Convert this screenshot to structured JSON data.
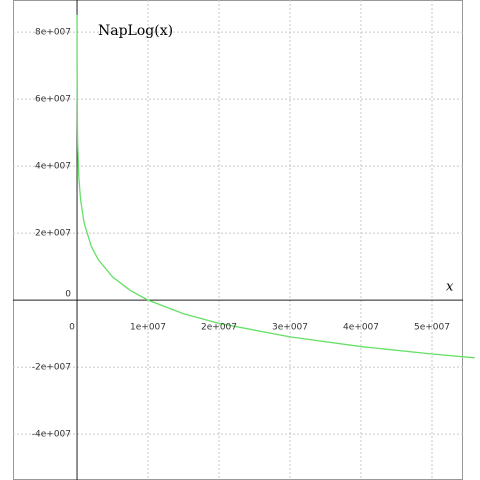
{
  "chart_data": {
    "type": "line",
    "title": "NapLog(x)",
    "x_label": "x",
    "color": "#66e066",
    "x": [
      2000,
      10000,
      50000,
      100000,
      250000,
      500000,
      1000000,
      2000000,
      3000000,
      5000000,
      7500000,
      10000000,
      15000000,
      20000000,
      30000000,
      40000000,
      50000000,
      56000000
    ],
    "values": [
      85171932,
      69077553,
      52983174,
      46051702,
      36888795,
      29957323,
      23025851,
      16094379,
      12039728,
      6931472,
      2876821,
      0,
      -4054651,
      -6931472,
      -10986123,
      -13862944,
      -16094379,
      -17227666
    ],
    "xlim": [
      -10850000,
      56760000
    ],
    "ylim": [
      -53700000,
      89600000
    ],
    "xticks": [
      0,
      {
        "value": 10000000,
        "label": "1e+007"
      },
      {
        "value": 20000000,
        "label": "2e+007"
      },
      {
        "value": 30000000,
        "label": "3e+007"
      },
      {
        "value": 40000000,
        "label": "4e+007"
      },
      {
        "value": 50000000,
        "label": "5e+007"
      }
    ],
    "yticks": [
      {
        "value": -40000000,
        "label": "-4e+007"
      },
      {
        "value": -20000000,
        "label": "-2e+007"
      },
      0,
      {
        "value": 20000000,
        "label": "2e+007"
      },
      {
        "value": 40000000,
        "label": "4e+007"
      },
      {
        "value": 60000000,
        "label": "6e+007"
      },
      {
        "value": 80000000,
        "label": "8e+007"
      }
    ],
    "grid": true
  }
}
